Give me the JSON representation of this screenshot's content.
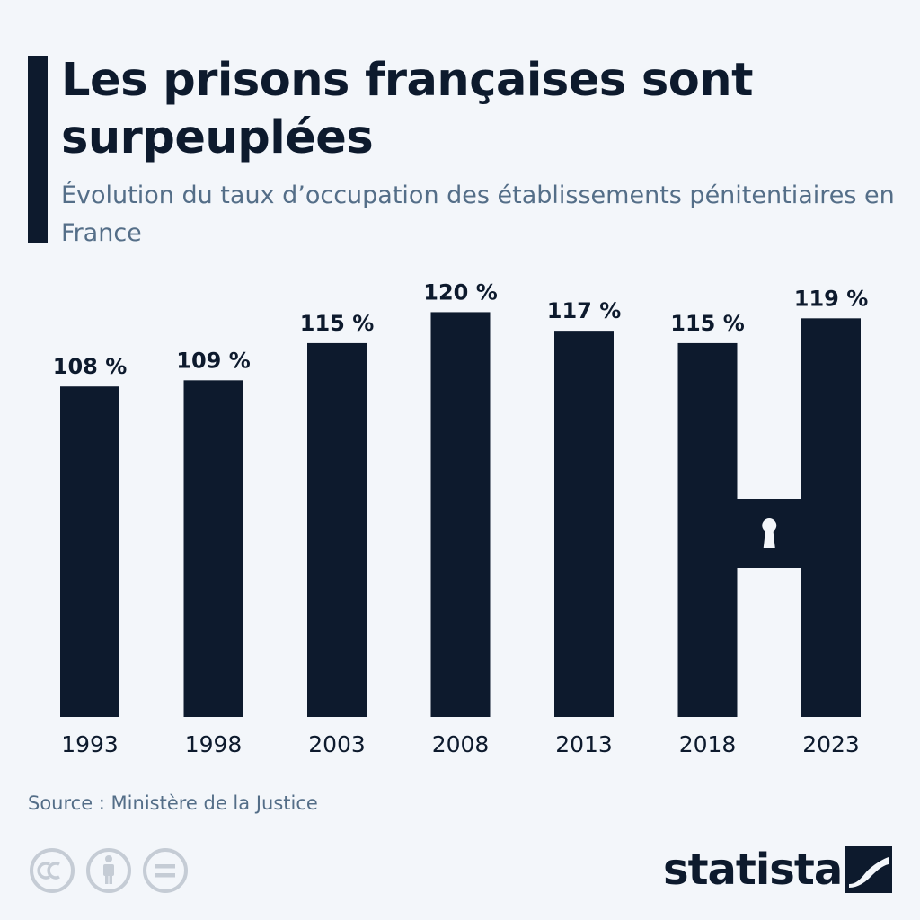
{
  "header": {
    "title": "Les prisons françaises sont surpeuplées",
    "subtitle": "Évolution du taux d’occupation des établissements pénitentiaires en France"
  },
  "footer": {
    "source": "Source : Ministère de la Justice",
    "brand": "statista"
  },
  "icons": [
    "cc-icon",
    "attribution-icon",
    "no-derivatives-icon",
    "keyhole-icon",
    "statista-logo-icon"
  ],
  "colors": {
    "bar": "#0d1a2d",
    "text": "#0d1a2d",
    "muted": "#546e88",
    "background": "#f3f6fa",
    "icon": "#c5ccd5"
  },
  "chart_data": {
    "type": "bar",
    "title": "Les prisons françaises sont surpeuplées",
    "subtitle": "Évolution du taux d’occupation des établissements pénitentiaires en France",
    "categories": [
      "1993",
      "1998",
      "2003",
      "2008",
      "2013",
      "2018",
      "2023"
    ],
    "values": [
      108,
      109,
      115,
      120,
      117,
      115,
      119
    ],
    "value_labels": [
      "108 %",
      "109 %",
      "115 %",
      "120 %",
      "117 %",
      "115 %",
      "119 %"
    ],
    "xlabel": "",
    "ylabel": "",
    "unit": "%",
    "grid": false,
    "legend": "none"
  }
}
